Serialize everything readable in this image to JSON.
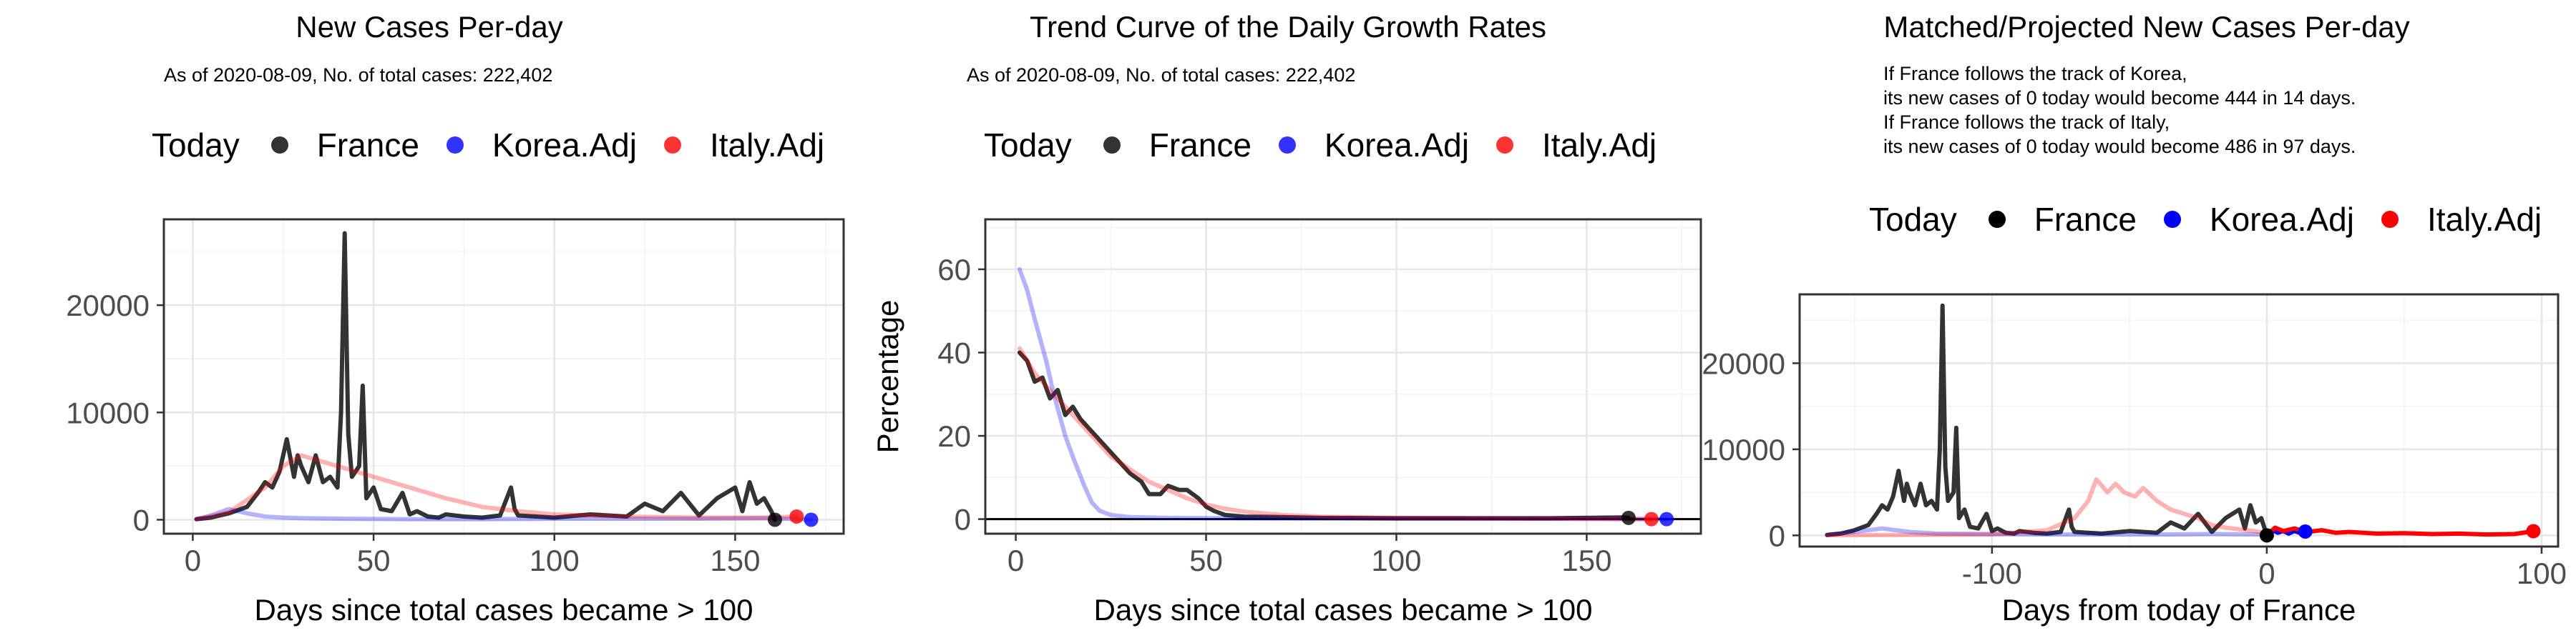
{
  "colors": {
    "france": "#000000",
    "korea": "#0000ff",
    "italy": "#ff0000"
  },
  "panels": [
    {
      "title": "New Cases Per-day",
      "subtitle": "As of 2020-08-09, No. of total cases: 222,402",
      "legend": {
        "title": "Today",
        "items": [
          "France",
          "Korea.Adj",
          "Italy.Adj"
        ]
      }
    },
    {
      "title": "Trend Curve of the Daily Growth Rates",
      "subtitle": "As of 2020-08-09, No. of total cases: 222,402",
      "legend": {
        "title": "Today",
        "items": [
          "France",
          "Korea.Adj",
          "Italy.Adj"
        ]
      }
    },
    {
      "title": "Matched/Projected New Cases Per-day",
      "subtitle": "If France follows the track of Korea,\nits new cases of 0 today would become 444 in 14 days.\nIf France follows the track of Italy,\nits new cases of 0 today would become 486 in 97 days.",
      "legend": {
        "title": "Today",
        "items": [
          "France",
          "Korea.Adj",
          "Italy.Adj"
        ]
      }
    }
  ],
  "chart_data": [
    {
      "type": "line",
      "title": "New Cases Per-day",
      "xlabel": "Days since total cases became > 100",
      "ylabel": "",
      "xlim": [
        -8,
        180
      ],
      "ylim": [
        -1300,
        28000
      ],
      "xticks": [
        0,
        50,
        100,
        150
      ],
      "yticks": [
        0,
        10000,
        20000
      ],
      "grid": true,
      "legend_position": "top",
      "series": [
        {
          "name": "France",
          "color": "#000000",
          "alpha": 0.8,
          "x": [
            1,
            5,
            10,
            15,
            18,
            20,
            22,
            24,
            26,
            28,
            29,
            30,
            32,
            34,
            36,
            38,
            40,
            41,
            42,
            43,
            44,
            46,
            47,
            48,
            50,
            52,
            55,
            58,
            60,
            62,
            65,
            68,
            70,
            75,
            80,
            85,
            88,
            89,
            90,
            95,
            100,
            110,
            120,
            125,
            130,
            135,
            140,
            145,
            150,
            152,
            154,
            156,
            158,
            160,
            161
          ],
          "y": [
            50,
            200,
            600,
            1200,
            2500,
            3500,
            3000,
            4500,
            7500,
            4000,
            6000,
            5000,
            3500,
            6000,
            3500,
            4000,
            3000,
            10000,
            26700,
            8000,
            4000,
            5000,
            12500,
            2000,
            3000,
            1000,
            800,
            2500,
            500,
            800,
            300,
            200,
            500,
            300,
            200,
            400,
            3000,
            1000,
            400,
            300,
            200,
            500,
            300,
            1500,
            800,
            2500,
            400,
            2000,
            3000,
            800,
            3500,
            1500,
            2000,
            800,
            0
          ]
        },
        {
          "name": "Korea.Adj",
          "color": "#0000ff",
          "alpha": 0.3,
          "x": [
            1,
            5,
            10,
            15,
            20,
            25,
            30,
            40,
            60,
            80,
            100,
            120,
            140,
            160,
            171
          ],
          "y": [
            50,
            400,
            1000,
            600,
            300,
            200,
            150,
            100,
            50,
            50,
            100,
            100,
            100,
            150,
            0
          ]
        },
        {
          "name": "Italy.Adj",
          "color": "#ff0000",
          "alpha": 0.3,
          "x": [
            1,
            10,
            20,
            25,
            30,
            35,
            40,
            45,
            50,
            55,
            60,
            70,
            80,
            90,
            100,
            120,
            140,
            160,
            167
          ],
          "y": [
            50,
            700,
            3000,
            5000,
            6000,
            5500,
            5000,
            4500,
            4000,
            3500,
            3000,
            2000,
            1200,
            800,
            500,
            300,
            200,
            200,
            300
          ]
        }
      ],
      "today_points": [
        {
          "name": "France",
          "x": 161,
          "y": 0
        },
        {
          "name": "Korea.Adj",
          "x": 171,
          "y": 0
        },
        {
          "name": "Italy.Adj",
          "x": 167,
          "y": 300
        }
      ]
    },
    {
      "type": "line",
      "title": "Trend Curve of the Daily Growth Rates",
      "xlabel": "Days since total cases became > 100",
      "ylabel": "Percentage",
      "xlim": [
        -8,
        180
      ],
      "ylim": [
        -3.5,
        72
      ],
      "xticks": [
        0,
        50,
        100,
        150
      ],
      "yticks": [
        0,
        20,
        40,
        60
      ],
      "grid": true,
      "hline": 0,
      "legend_position": "top",
      "series": [
        {
          "name": "France",
          "color": "#000000",
          "alpha": 0.8,
          "x": [
            1,
            3,
            5,
            7,
            9,
            11,
            13,
            15,
            17,
            20,
            23,
            26,
            30,
            33,
            35,
            38,
            40,
            43,
            45,
            48,
            50,
            52,
            55,
            60,
            70,
            80,
            100,
            120,
            140,
            160,
            161
          ],
          "y": [
            40,
            38,
            33,
            34,
            29,
            31,
            25,
            27,
            24,
            21,
            18,
            15,
            11,
            9,
            6,
            6,
            8,
            7,
            7,
            5,
            3,
            2,
            1,
            0.6,
            0.5,
            0.3,
            0.2,
            0.2,
            0.2,
            0.4,
            0.3
          ]
        },
        {
          "name": "Korea.Adj",
          "color": "#0000ff",
          "alpha": 0.3,
          "x": [
            1,
            3,
            5,
            8,
            10,
            13,
            15,
            18,
            20,
            22,
            25,
            30,
            40,
            60,
            100,
            140,
            171
          ],
          "y": [
            60,
            55,
            48,
            38,
            30,
            20,
            15,
            8,
            4,
            2,
            1,
            0.5,
            0.3,
            0.2,
            0.1,
            0.1,
            0
          ]
        },
        {
          "name": "Italy.Adj",
          "color": "#ff0000",
          "alpha": 0.3,
          "x": [
            1,
            5,
            10,
            15,
            20,
            25,
            30,
            35,
            40,
            45,
            50,
            55,
            60,
            70,
            80,
            100,
            120,
            140,
            167
          ],
          "y": [
            41,
            35,
            30,
            25,
            20,
            15,
            12,
            9,
            7,
            5,
            3.5,
            2.5,
            1.8,
            1,
            0.6,
            0.3,
            0.2,
            0.1,
            0
          ]
        }
      ],
      "today_points": [
        {
          "name": "France",
          "x": 161,
          "y": 0.3
        },
        {
          "name": "Korea.Adj",
          "x": 171,
          "y": 0
        },
        {
          "name": "Italy.Adj",
          "x": 167,
          "y": 0
        }
      ]
    },
    {
      "type": "line",
      "title": "Matched/Projected New Cases Per-day",
      "xlabel": "Days from today of France",
      "ylabel": "",
      "xlim": [
        -170,
        106
      ],
      "ylim": [
        -1300,
        28000
      ],
      "xticks": [
        -100,
        0,
        100
      ],
      "yticks": [
        0,
        10000,
        20000
      ],
      "grid": true,
      "legend_position": "top",
      "series": [
        {
          "name": "France",
          "color": "#000000",
          "alpha": 0.8,
          "x": [
            -160,
            -155,
            -150,
            -145,
            -142,
            -140,
            -138,
            -136,
            -134,
            -132,
            -131,
            -130,
            -128,
            -126,
            -124,
            -122,
            -120,
            -119,
            -118,
            -117,
            -116,
            -114,
            -113,
            -112,
            -110,
            -108,
            -105,
            -102,
            -100,
            -98,
            -95,
            -92,
            -90,
            -85,
            -80,
            -75,
            -72,
            -71,
            -70,
            -65,
            -60,
            -50,
            -40,
            -35,
            -30,
            -25,
            -20,
            -15,
            -10,
            -8,
            -6,
            -4,
            -2,
            0
          ],
          "y": [
            50,
            200,
            600,
            1200,
            2500,
            3500,
            3000,
            4500,
            7500,
            4000,
            6000,
            5000,
            3500,
            6000,
            3500,
            4000,
            3000,
            10000,
            26700,
            8000,
            4000,
            5000,
            12500,
            2000,
            3000,
            1000,
            800,
            2500,
            500,
            800,
            300,
            200,
            500,
            300,
            200,
            400,
            3000,
            1000,
            400,
            300,
            200,
            500,
            300,
            1500,
            800,
            2500,
            400,
            2000,
            3000,
            800,
            3500,
            1500,
            2000,
            0
          ]
        },
        {
          "name": "Korea.Adj",
          "color": "#0000ff",
          "alpha": 0.3,
          "x": [
            -160,
            -150,
            -140,
            -130,
            -120,
            -100,
            -80,
            -60,
            -40,
            -20,
            0
          ],
          "y": [
            50,
            400,
            800,
            400,
            200,
            150,
            100,
            100,
            100,
            150,
            100
          ]
        },
        {
          "name": "Italy.Adj",
          "color": "#ff0000",
          "alpha": 0.3,
          "x": [
            -160,
            -100,
            -80,
            -70,
            -65,
            -62,
            -58,
            -55,
            -52,
            -48,
            -45,
            -40,
            -35,
            -30,
            -25,
            -20,
            -15,
            -10,
            -5,
            0
          ],
          "y": [
            0,
            100,
            600,
            2000,
            4000,
            6500,
            5000,
            6000,
            5000,
            4500,
            5500,
            4000,
            3000,
            2500,
            2000,
            1200,
            900,
            700,
            500,
            300
          ]
        },
        {
          "name": "Korea.Adj projected",
          "color": "#0000ff",
          "alpha": 1,
          "x": [
            0,
            2,
            4,
            6,
            8,
            10,
            12,
            14
          ],
          "y": [
            0,
            600,
            300,
            500,
            200,
            500,
            300,
            444
          ]
        },
        {
          "name": "Italy.Adj projected",
          "color": "#ff0000",
          "alpha": 1,
          "x": [
            0,
            3,
            6,
            10,
            15,
            20,
            25,
            30,
            40,
            50,
            60,
            70,
            80,
            90,
            97
          ],
          "y": [
            0,
            900,
            500,
            800,
            400,
            600,
            300,
            400,
            200,
            250,
            150,
            200,
            100,
            150,
            486
          ]
        }
      ],
      "today_points": [
        {
          "name": "France",
          "x": 0,
          "y": 0
        },
        {
          "name": "Korea.Adj",
          "x": 14,
          "y": 444
        },
        {
          "name": "Italy.Adj",
          "x": 97,
          "y": 486
        }
      ]
    }
  ]
}
